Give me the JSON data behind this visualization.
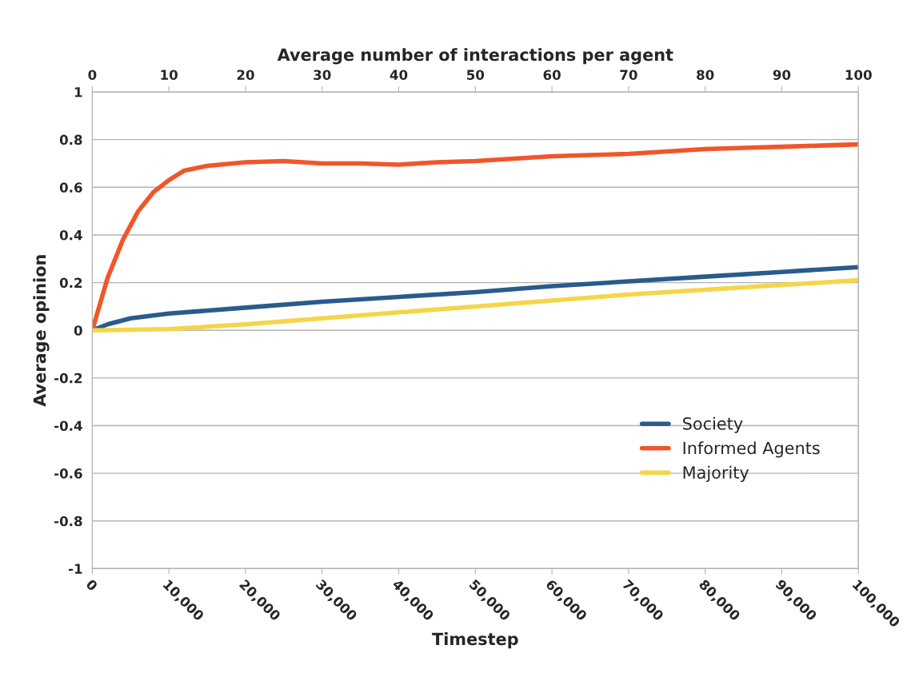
{
  "chart_data": {
    "type": "line",
    "xlabel": "Timestep",
    "ylabel": "Average opinion",
    "x2label": "Average number of interactions per agent",
    "xlim": [
      0,
      100000
    ],
    "xticks": [
      0,
      {
        "value": 10000,
        "label": "10,000"
      },
      {
        "value": 20000,
        "label": "20,000"
      },
      {
        "value": 30000,
        "label": "30,000"
      },
      {
        "value": 40000,
        "label": "40,000"
      },
      {
        "value": 50000,
        "label": "50,000"
      },
      {
        "value": 60000,
        "label": "60,000"
      },
      {
        "value": 70000,
        "label": "70,000"
      },
      {
        "value": 80000,
        "label": "80,000"
      },
      {
        "value": 90000,
        "label": "90,000"
      },
      {
        "value": 100000,
        "label": "100,000"
      }
    ],
    "x2lim": [
      0,
      100
    ],
    "x2ticks": [
      0,
      10,
      20,
      30,
      40,
      50,
      60,
      70,
      80,
      90,
      100
    ],
    "ylim": [
      -1,
      1
    ],
    "yticks": [
      -1,
      -0.8,
      -0.6,
      -0.4,
      -0.2,
      0,
      0.2,
      0.4,
      0.6,
      0.8,
      1
    ],
    "grid": "y",
    "legend": "center right",
    "line_style": "solid",
    "marker": "none",
    "series": [
      {
        "name": "Society",
        "color": "#2a5b8c",
        "x": [
          0,
          2000,
          5000,
          10000,
          20000,
          30000,
          40000,
          50000,
          60000,
          70000,
          80000,
          90000,
          100000
        ],
        "values": [
          0,
          0.025,
          0.05,
          0.07,
          0.095,
          0.12,
          0.14,
          0.16,
          0.185,
          0.205,
          0.225,
          0.245,
          0.265
        ]
      },
      {
        "name": "Informed Agents",
        "color": "#f0562a",
        "x": [
          0,
          2000,
          4000,
          6000,
          8000,
          10000,
          12000,
          15000,
          20000,
          25000,
          30000,
          35000,
          40000,
          45000,
          50000,
          55000,
          60000,
          65000,
          70000,
          75000,
          80000,
          85000,
          90000,
          95000,
          100000
        ],
        "values": [
          0,
          0.22,
          0.38,
          0.5,
          0.58,
          0.63,
          0.67,
          0.69,
          0.705,
          0.71,
          0.7,
          0.7,
          0.695,
          0.705,
          0.71,
          0.72,
          0.73,
          0.735,
          0.74,
          0.75,
          0.76,
          0.765,
          0.77,
          0.775,
          0.78
        ]
      },
      {
        "name": "Majority",
        "color": "#f5d54a",
        "x": [
          0,
          10000,
          20000,
          30000,
          40000,
          50000,
          60000,
          70000,
          80000,
          90000,
          100000
        ],
        "values": [
          0,
          0.005,
          0.025,
          0.05,
          0.075,
          0.1,
          0.125,
          0.15,
          0.17,
          0.19,
          0.21
        ]
      }
    ]
  }
}
